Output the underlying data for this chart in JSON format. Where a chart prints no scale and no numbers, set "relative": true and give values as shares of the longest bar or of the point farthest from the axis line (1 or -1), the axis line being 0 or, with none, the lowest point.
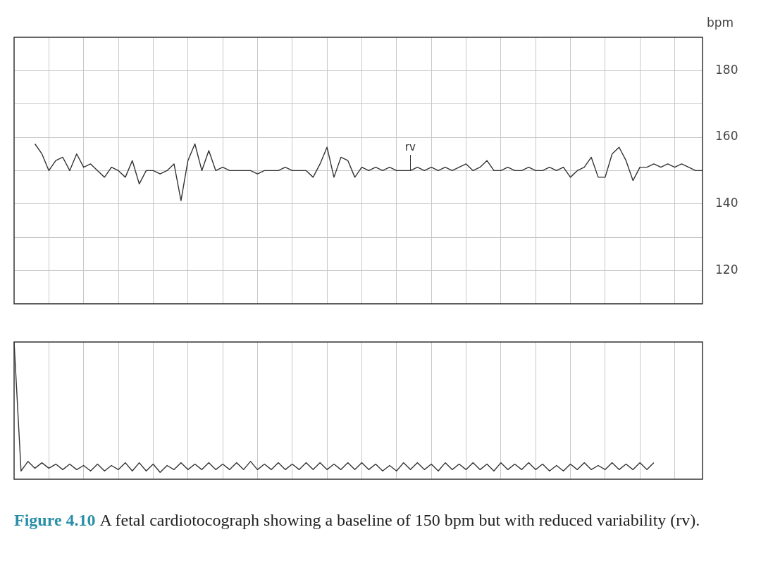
{
  "chart_data": [
    {
      "type": "line",
      "ylabel": "bpm",
      "categories": [
        null,
        null,
        null,
        null,
        null,
        null,
        null,
        null,
        null,
        null,
        null,
        null,
        null,
        null,
        null,
        null,
        null,
        null,
        null,
        null,
        null,
        null,
        null,
        null,
        null,
        null,
        null,
        null,
        null,
        null,
        null,
        null,
        null,
        null,
        null,
        null,
        null,
        null,
        null,
        null,
        null,
        null,
        null,
        null,
        null,
        null,
        null,
        null,
        null,
        null,
        null,
        null,
        null,
        null,
        null,
        null,
        null,
        null,
        null,
        null,
        null,
        null,
        null,
        null,
        null,
        null,
        null,
        null,
        null,
        null,
        null,
        null,
        null,
        null,
        null,
        null,
        null,
        null,
        null,
        null,
        null,
        null,
        null,
        null,
        null,
        null,
        null,
        null,
        null,
        null,
        null,
        null,
        null,
        null,
        null,
        null,
        null,
        null,
        null,
        null
      ],
      "series": [
        {
          "color": "#333333",
          "values": [
            null,
            null,
            null,
            158,
            155,
            150,
            153,
            154,
            150,
            155,
            151,
            152,
            150,
            148,
            151,
            150,
            148,
            153,
            146,
            150,
            150,
            149,
            150,
            152,
            141,
            153,
            158,
            150,
            156,
            150,
            151,
            150,
            150,
            150,
            150,
            149,
            150,
            150,
            150,
            151,
            150,
            150,
            150,
            148,
            152,
            157,
            148,
            154,
            153,
            148,
            151,
            150,
            151,
            150,
            151,
            150,
            150,
            150,
            151,
            150,
            151,
            150,
            151,
            150,
            151,
            152,
            150,
            151,
            153,
            150,
            150,
            151,
            150,
            150,
            151,
            150,
            150,
            151,
            150,
            151,
            148,
            150,
            151,
            154,
            148,
            148,
            155,
            157,
            153,
            147,
            151,
            151,
            152,
            151,
            152,
            151,
            152,
            151,
            150,
            150
          ]
        }
      ],
      "ylim": [
        110,
        190
      ],
      "yticks": [
        120,
        {
          "value": 130,
          "label": null
        },
        140,
        {
          "value": 150,
          "label": null
        },
        160,
        {
          "value": 170,
          "label": null
        },
        180
      ],
      "grid": true,
      "tick_labels": "y",
      "legend": false,
      "annotations": [
        {
          "text": "rv",
          "y": 150
        }
      ]
    },
    {
      "type": "line",
      "relative": true,
      "categories": [
        null,
        null,
        null,
        null,
        null,
        null,
        null,
        null,
        null,
        null,
        null,
        null,
        null,
        null,
        null,
        null,
        null,
        null,
        null,
        null,
        null,
        null,
        null,
        null,
        null,
        null,
        null,
        null,
        null,
        null,
        null,
        null,
        null,
        null,
        null,
        null,
        null,
        null,
        null,
        null,
        null,
        null,
        null,
        null,
        null,
        null,
        null,
        null,
        null,
        null,
        null,
        null,
        null,
        null,
        null,
        null,
        null,
        null,
        null,
        null,
        null,
        null,
        null,
        null,
        null,
        null,
        null,
        null,
        null,
        null,
        null,
        null,
        null,
        null,
        null,
        null,
        null,
        null,
        null,
        null,
        null,
        null,
        null,
        null,
        null,
        null,
        null,
        null,
        null,
        null,
        null,
        null,
        null,
        null,
        null,
        null,
        null,
        null,
        null,
        null
      ],
      "series": [
        {
          "color": "#333333",
          "values": [
            1,
            0.06,
            0.13,
            0.08,
            0.12,
            0.08,
            0.11,
            0.07,
            0.11,
            0.07,
            0.1,
            0.06,
            0.11,
            0.06,
            0.1,
            0.07,
            0.12,
            0.06,
            0.12,
            0.06,
            0.11,
            0.05,
            0.1,
            0.07,
            0.12,
            0.07,
            0.11,
            0.07,
            0.12,
            0.07,
            0.11,
            0.07,
            0.12,
            0.07,
            0.13,
            0.07,
            0.11,
            0.07,
            0.12,
            0.07,
            0.11,
            0.07,
            0.12,
            0.07,
            0.12,
            0.07,
            0.11,
            0.07,
            0.12,
            0.07,
            0.12,
            0.07,
            0.11,
            0.06,
            0.1,
            0.06,
            0.12,
            0.07,
            0.12,
            0.07,
            0.11,
            0.06,
            0.12,
            0.07,
            0.11,
            0.07,
            0.12,
            0.07,
            0.11,
            0.06,
            0.12,
            0.07,
            0.11,
            0.07,
            0.12,
            0.07,
            0.11,
            0.06,
            0.1,
            0.06,
            0.11,
            0.07,
            0.12,
            0.07,
            0.1,
            0.07,
            0.12,
            0.07,
            0.11,
            0.07,
            0.12,
            0.07,
            0.12,
            null,
            null,
            null,
            null,
            null,
            null,
            null
          ]
        }
      ],
      "grid": "x",
      "tick_labels": false,
      "legend": false,
      "annotations": [
        "Figure 4.10",
        "A fetal cardiotocograph showing a baseline of 150 bpm but with reduced variability (rv)."
      ]
    }
  ]
}
